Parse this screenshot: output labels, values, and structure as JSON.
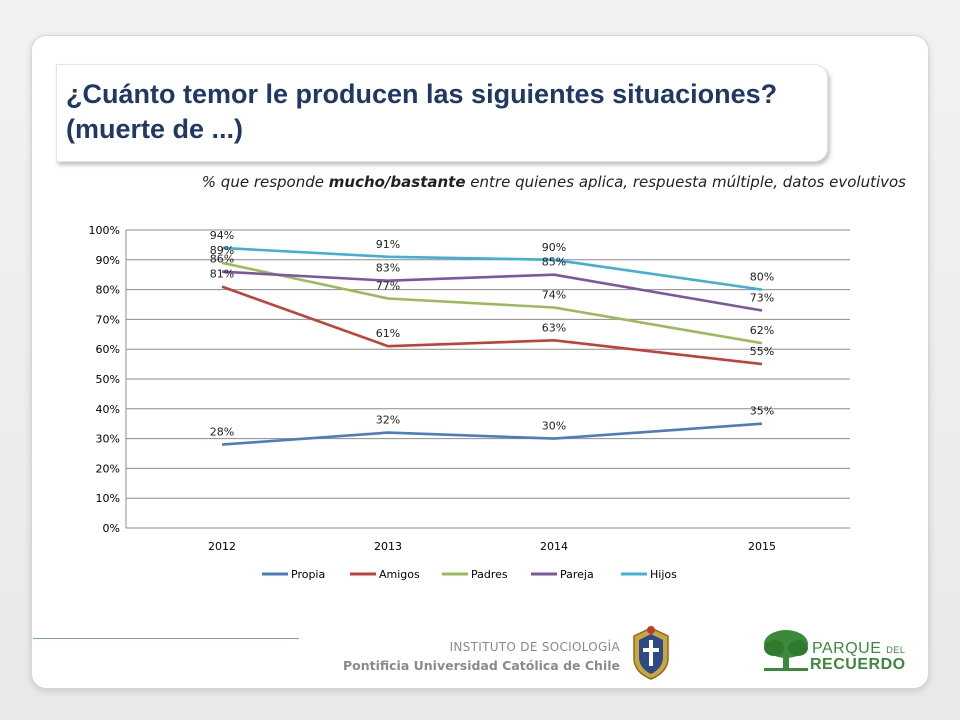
{
  "slide": {
    "title": "¿Cuánto temor le producen las siguientes situaciones? (muerte de ...)",
    "subtitle_pre": "% que responde ",
    "subtitle_bold": "mucho/bastante",
    "subtitle_post": " entre quienes aplica, respuesta múltiple, datos evolutivos"
  },
  "footer": {
    "institute": "INSTITUTO DE SOCIOLOGÍA",
    "university": "Pontificia Universidad Católica de Chile",
    "logo_line1": "PARQUE",
    "logo_line1_small": "DEL",
    "logo_line2": "RECUERDO"
  },
  "chart_data": {
    "type": "line",
    "x": [
      "2012",
      "2013",
      "2014",
      "2015"
    ],
    "ylim": [
      0,
      100
    ],
    "yticks": [
      0,
      10,
      20,
      30,
      40,
      50,
      60,
      70,
      80,
      90,
      100
    ],
    "ytick_labels": [
      "0%",
      "10%",
      "20%",
      "30%",
      "40%",
      "50%",
      "60%",
      "70%",
      "80%",
      "90%",
      "100%"
    ],
    "grid": true,
    "legend": "bottom",
    "series": [
      {
        "name": "Propia",
        "color": "#4a7ebf",
        "values": [
          28,
          32,
          30,
          35
        ],
        "labels": [
          "28%",
          "32%",
          "30%",
          "35%"
        ]
      },
      {
        "name": "Amigos",
        "color": "#c0413a",
        "values": [
          81,
          61,
          63,
          55
        ],
        "labels": [
          "81%",
          "61%",
          "63%",
          "55%"
        ]
      },
      {
        "name": "Padres",
        "color": "#9bbb59",
        "values": [
          89,
          77,
          74,
          62
        ],
        "labels": [
          "89%",
          "77%",
          "74%",
          "62%"
        ]
      },
      {
        "name": "Pareja",
        "color": "#7a57a0",
        "values": [
          86,
          83,
          85,
          73
        ],
        "labels": [
          "86%",
          "83%",
          "85%",
          "73%"
        ]
      },
      {
        "name": "Hijos",
        "color": "#3fb0d8",
        "values": [
          94,
          91,
          90,
          80
        ],
        "labels": [
          "94%",
          "91%",
          "90%",
          "80%"
        ]
      }
    ]
  }
}
